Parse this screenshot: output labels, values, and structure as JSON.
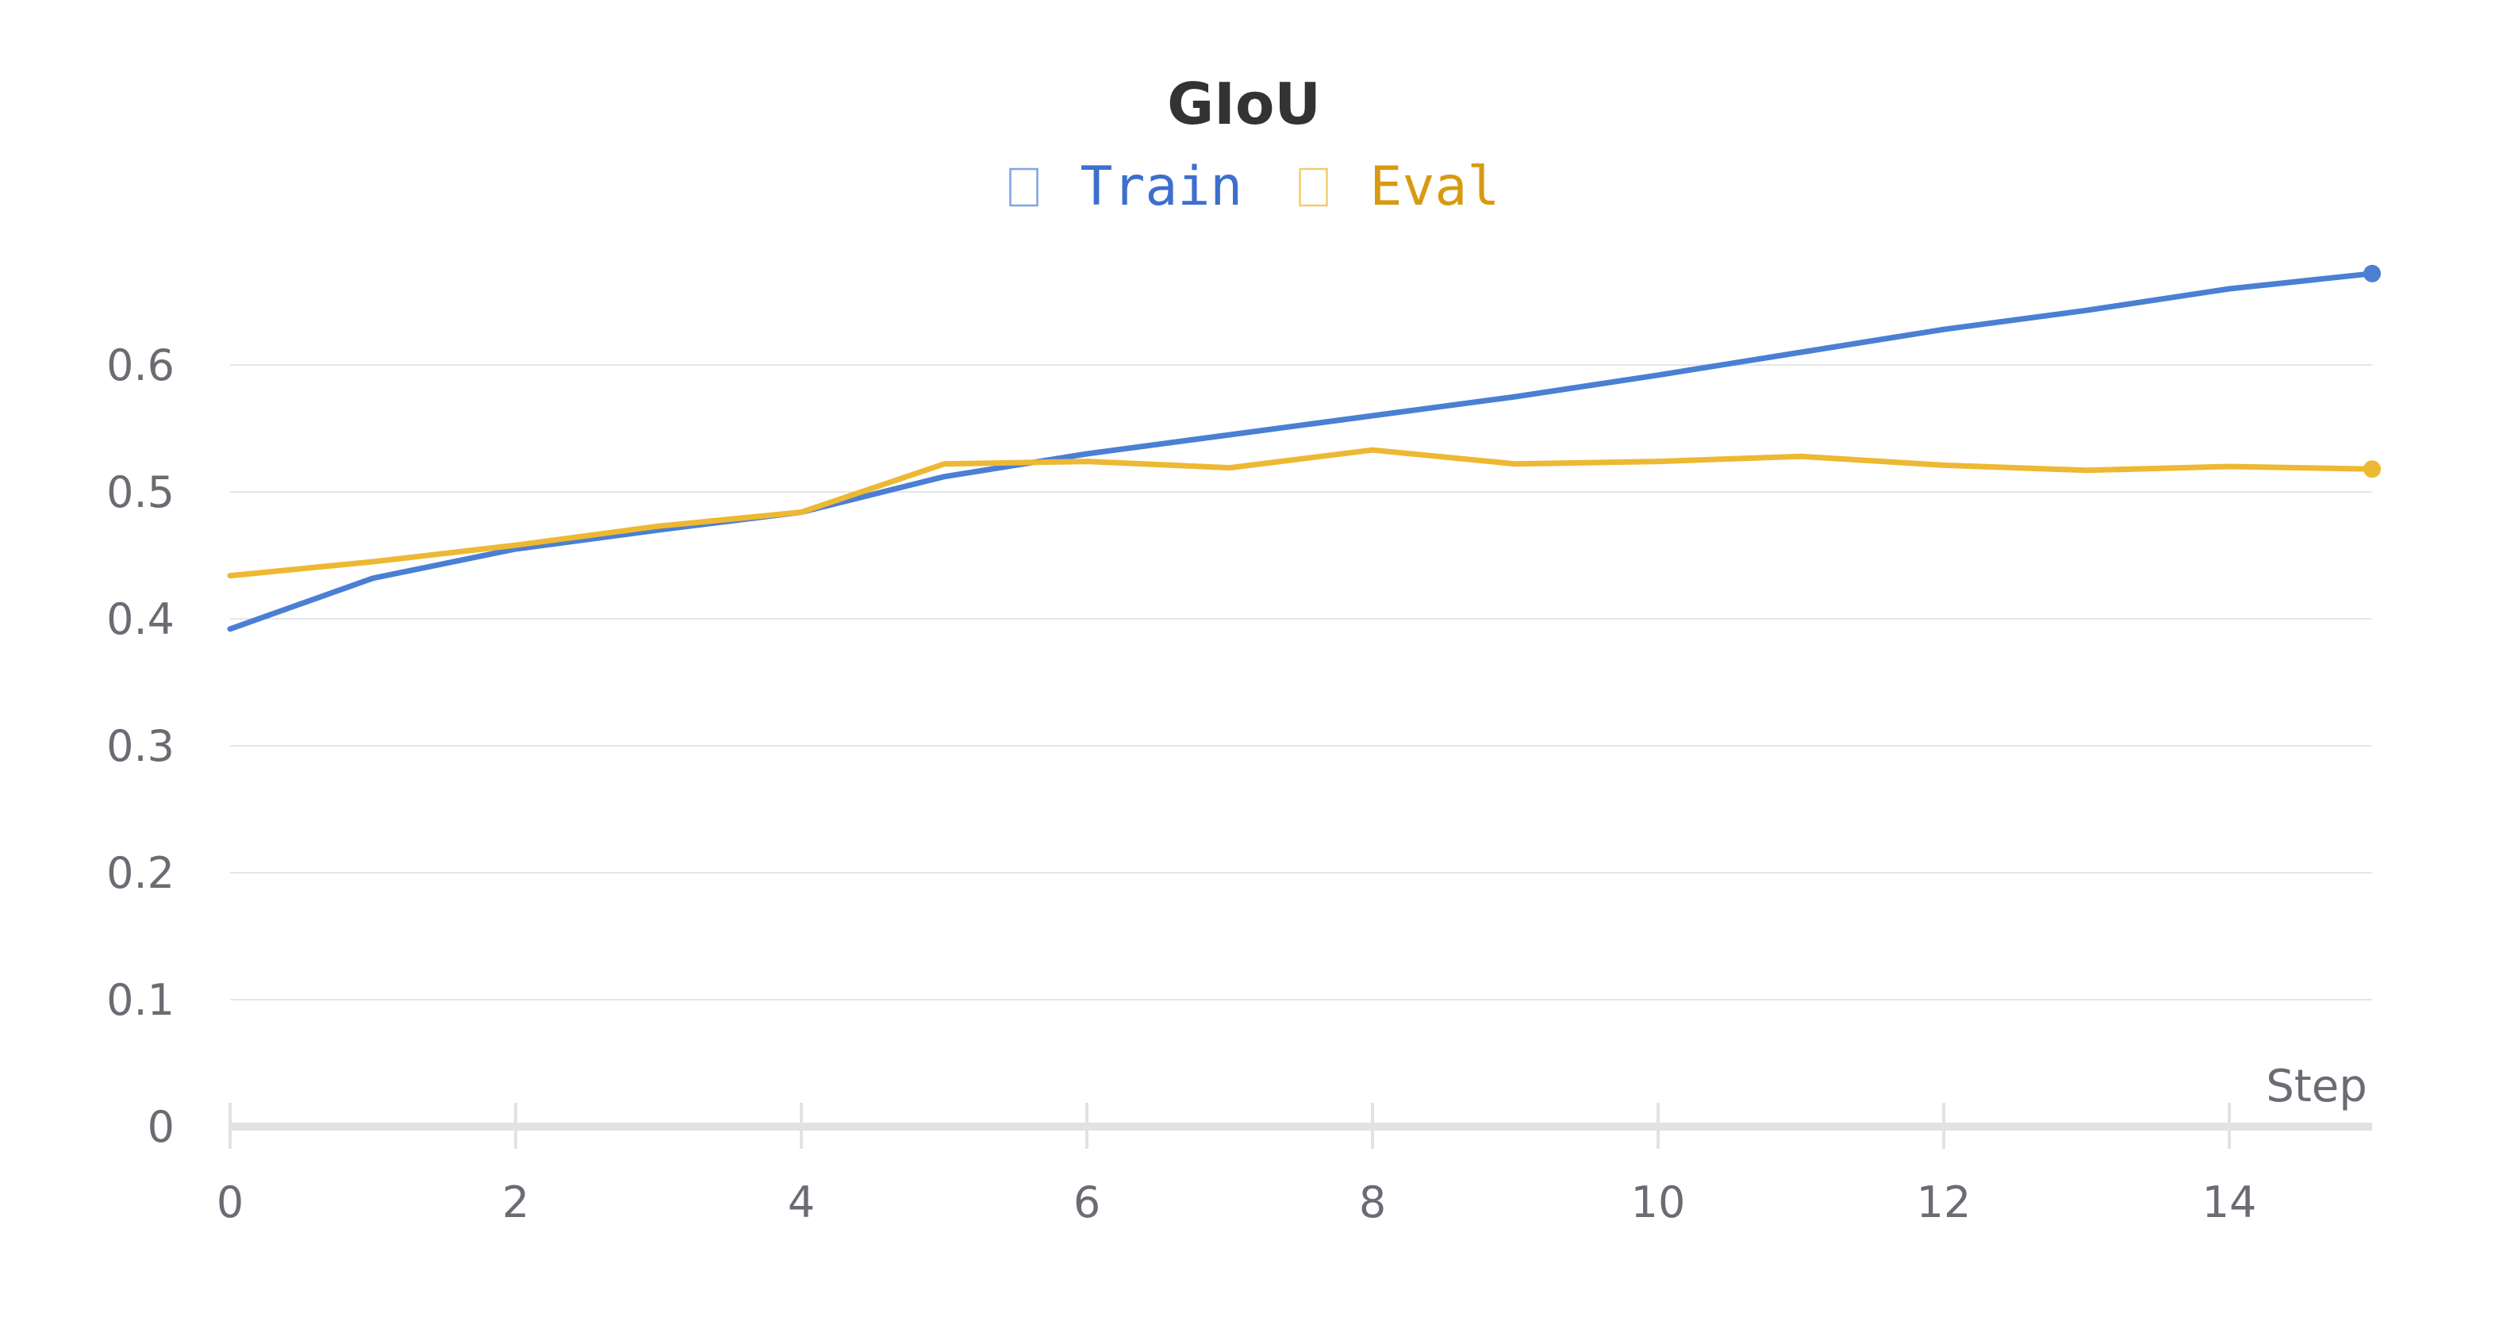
{
  "chart_data": {
    "type": "line",
    "title": "GIoU",
    "xlabel": "Step",
    "ylabel": "",
    "xlim": [
      0,
      15
    ],
    "ylim": [
      0,
      0.7
    ],
    "xticks": [
      0,
      2,
      4,
      6,
      8,
      10,
      12,
      14
    ],
    "yticks": [
      0,
      0.1,
      0.2,
      0.3,
      0.4,
      0.5,
      0.6
    ],
    "ytick_labels": [
      "0",
      "0.1",
      "0.2",
      "0.3",
      "0.4",
      "0.5",
      "0.6"
    ],
    "grid": "horizontal",
    "legend_position": "top-center",
    "x": [
      0,
      1,
      2,
      3,
      4,
      5,
      6,
      7,
      8,
      9,
      10,
      11,
      12,
      13,
      14,
      15
    ],
    "series": [
      {
        "name": "Train",
        "color": "#4a7fd4",
        "values": [
          0.392,
          0.432,
          0.455,
          0.47,
          0.484,
          0.512,
          0.53,
          0.545,
          0.56,
          0.575,
          0.592,
          0.61,
          0.628,
          0.643,
          0.66,
          0.672
        ]
      },
      {
        "name": "Eval",
        "color": "#edb832",
        "values": [
          0.434,
          0.445,
          0.458,
          0.473,
          0.484,
          0.522,
          0.524,
          0.519,
          0.533,
          0.522,
          0.524,
          0.528,
          0.521,
          0.517,
          0.52,
          0.518
        ]
      }
    ],
    "legend_text_colors": [
      "#3d6fcc",
      "#d89a12"
    ],
    "legend_marker": "hollow-square"
  }
}
